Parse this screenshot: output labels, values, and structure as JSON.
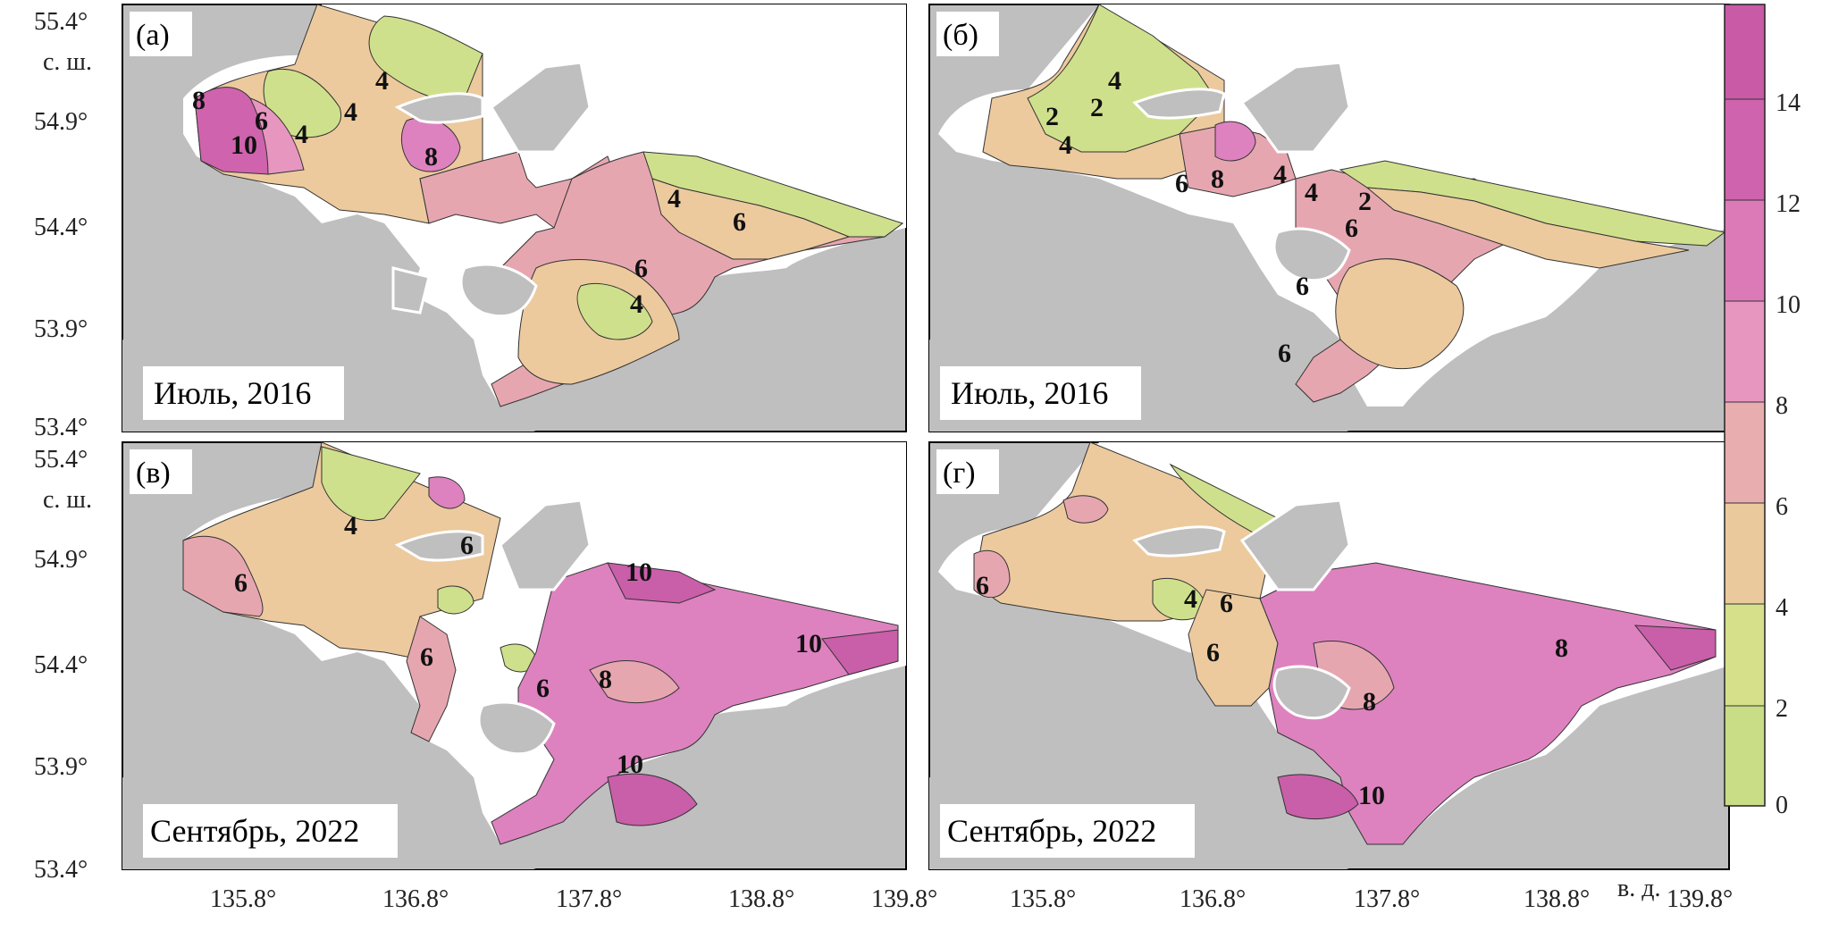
{
  "panels": [
    {
      "label": "(а)",
      "caption": "Июль, 2016",
      "isolines": [
        "8",
        "10",
        "6",
        "4",
        "4",
        "4",
        "8",
        "4",
        "6",
        "6",
        "4"
      ]
    },
    {
      "label": "(б)",
      "caption": "Июль, 2016",
      "isolines": [
        "4",
        "2",
        "2",
        "4",
        "6",
        "8",
        "4",
        "4",
        "2",
        "6",
        "6",
        "6"
      ]
    },
    {
      "label": "(в)",
      "caption": "Сентябрь, 2022",
      "isolines": [
        "4",
        "6",
        "6",
        "6",
        "10",
        "10",
        "8",
        "6",
        "10"
      ]
    },
    {
      "label": "(г)",
      "caption": "Сентябрь, 2022",
      "isolines": [
        "6",
        "4",
        "6",
        "6",
        "8",
        "8",
        "10"
      ]
    }
  ],
  "axes": {
    "y_ticks": [
      "55.4°",
      "54.9°",
      "54.4°",
      "53.9°",
      "53.4°"
    ],
    "y_unit": "с. ш.",
    "x_ticks_left": [
      "135.8°",
      "136.8°",
      "137.8°",
      "138.8°",
      "139.8°"
    ],
    "x_ticks_right": [
      "135.8°",
      "136.8°",
      "137.8°",
      "138.8°",
      "139.8°"
    ],
    "x_unit": "в. д."
  },
  "colorbar": {
    "ticks": [
      "14",
      "12",
      "10",
      "8",
      "6",
      "4",
      "2",
      "0"
    ],
    "colors": [
      "#c9dc86",
      "#d6e08a",
      "#eac99c",
      "#e8adaf",
      "#e796c0",
      "#dc7ab8",
      "#cf63ad",
      "#c85aa6"
    ]
  },
  "colors": {
    "land": "#bfbfbf",
    "water_white": "#ffffff",
    "green": "#cfe08c",
    "tan": "#ecca9e",
    "pink": "#e6a6b0",
    "magenta": "#dd82bf",
    "deep": "#c95ea9"
  }
}
